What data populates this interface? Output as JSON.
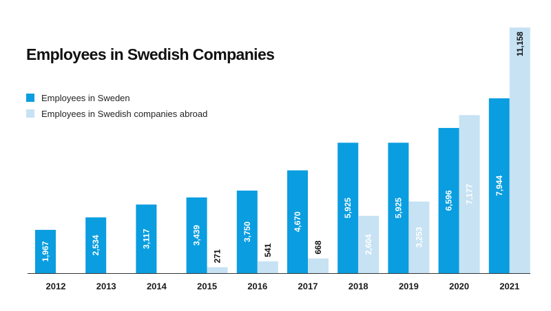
{
  "chart_data": {
    "type": "bar",
    "title": "Employees in Swedish Companies",
    "categories": [
      "2012",
      "2013",
      "2014",
      "2015",
      "2016",
      "2017",
      "2018",
      "2019",
      "2020",
      "2021"
    ],
    "series": [
      {
        "name": "Employees in Sweden",
        "color": "#0a9de0",
        "values": [
          1967,
          2534,
          3117,
          3439,
          3750,
          4670,
          5925,
          5925,
          6596,
          7944
        ],
        "labels": [
          "1,967",
          "2,534",
          "3,117",
          "3,439",
          "3,750",
          "4,670",
          "5,925",
          "5,925",
          "6,596",
          "7,944"
        ]
      },
      {
        "name": "Employees in Swedish companies abroad",
        "color": "#c7e2f3",
        "values": [
          null,
          null,
          null,
          271,
          541,
          668,
          2604,
          3253,
          7177,
          11158
        ],
        "labels": [
          "",
          "",
          "",
          "271",
          "541",
          "668",
          "2,604",
          "3,253",
          "7,177",
          "11,158"
        ]
      }
    ],
    "ylim": [
      0,
      11158
    ],
    "grid": false,
    "legend_position": "top-left"
  }
}
